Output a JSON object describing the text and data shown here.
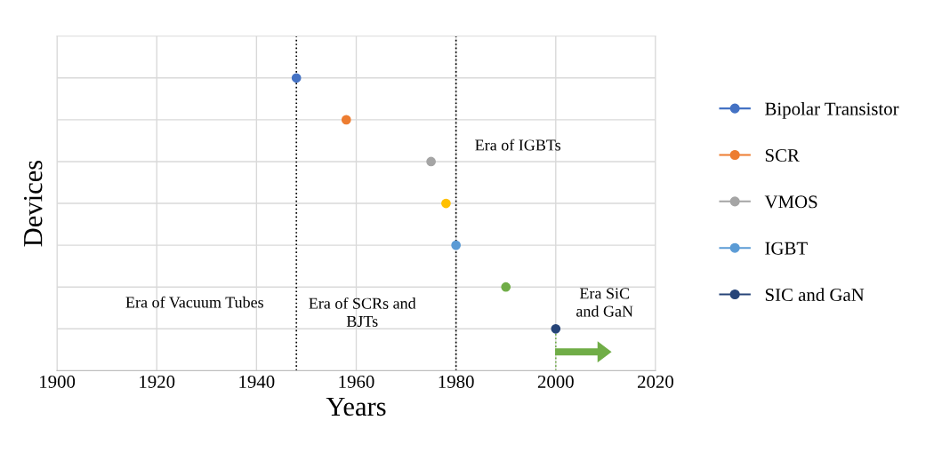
{
  "chart_data": {
    "type": "scatter",
    "orientation": "horizontal",
    "xlabel": "Years",
    "ylabel": "Devices",
    "categories": [
      null,
      null,
      null,
      null,
      null,
      null,
      null
    ],
    "xlim": [
      1900,
      2020
    ],
    "xticks": [
      1900,
      1920,
      1940,
      1960,
      1980,
      2000,
      2020
    ],
    "grid": true,
    "legend": "right",
    "marker": "circle",
    "series": [
      {
        "name": "Bipolar Transistor",
        "color": "#4472c4",
        "values": [
          1948,
          null,
          null,
          null,
          null,
          null,
          null
        ]
      },
      {
        "name": "SCR",
        "color": "#ed7d31",
        "values": [
          null,
          1958,
          null,
          null,
          null,
          null,
          null
        ]
      },
      {
        "name": "VMOS",
        "color": "#a5a5a5",
        "values": [
          null,
          null,
          1975,
          null,
          null,
          null,
          null
        ]
      },
      {
        "color": "#ffc000",
        "values": [
          null,
          null,
          null,
          1978,
          null,
          null,
          null
        ]
      },
      {
        "name": "IGBT",
        "color": "#5b9bd5",
        "values": [
          null,
          null,
          null,
          null,
          1980,
          null,
          null
        ]
      },
      {
        "color": "#70ad47",
        "values": [
          null,
          null,
          null,
          null,
          null,
          1990,
          null
        ]
      },
      {
        "name": "SIC and GaN",
        "color": "#264478",
        "values": [
          null,
          null,
          null,
          null,
          null,
          null,
          2000
        ]
      }
    ],
    "ref_lines": [
      {
        "axis": "x",
        "value": 1948,
        "color": "#000000",
        "line_style": "dotted"
      },
      {
        "axis": "x",
        "value": 1980,
        "color": "#000000",
        "line_style": "dotted"
      }
    ],
    "annotations": [
      "Era of Vacuum Tubes",
      "Era of SCRs and\nBJTs",
      "Era of IGBTs",
      "Era SiC\nand GaN"
    ]
  }
}
